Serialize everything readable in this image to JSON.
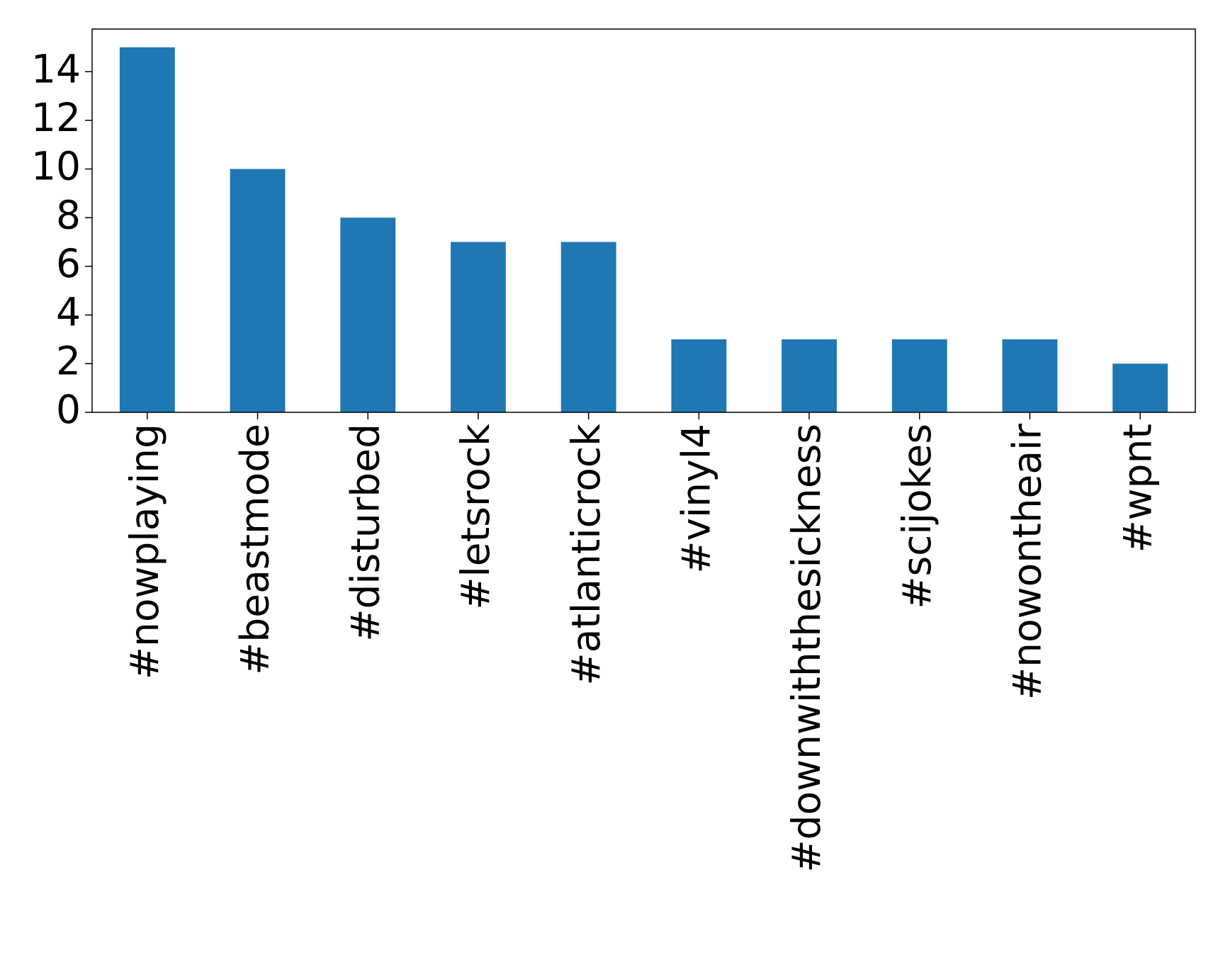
{
  "chart_data": {
    "type": "bar",
    "categories": [
      "#nowplaying",
      "#beastmode",
      "#disturbed",
      "#letsrock",
      "#atlanticrock",
      "#vinyl4",
      "#downwiththesickness",
      "#scijokes",
      "#nowontheair",
      "#wpnt"
    ],
    "values": [
      15,
      10,
      8,
      7,
      7,
      3,
      3,
      3,
      3,
      2
    ],
    "color": "#1f77b4",
    "ylim": [
      0,
      15.75
    ],
    "yticks": [
      0,
      2,
      4,
      6,
      8,
      10,
      12,
      14
    ],
    "grid": false
  }
}
